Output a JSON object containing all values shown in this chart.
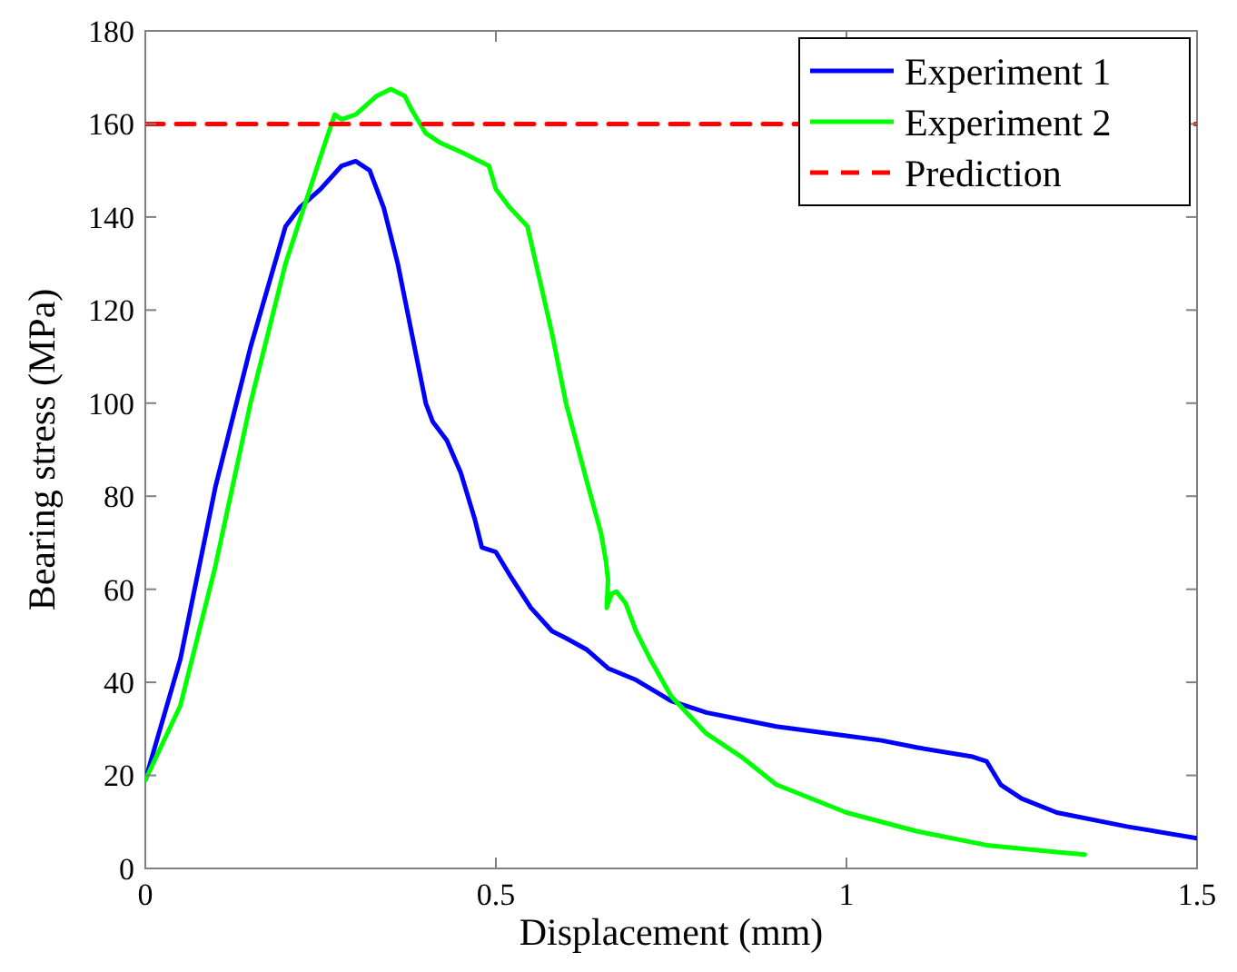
{
  "chart_data": {
    "type": "line",
    "xlabel": "Displacement (mm)",
    "ylabel": "Bearing stress (MPa)",
    "xlim": [
      0,
      1.5
    ],
    "ylim": [
      0,
      180
    ],
    "xticks": [
      0,
      0.5,
      1,
      1.5
    ],
    "yticks": [
      0,
      20,
      40,
      60,
      80,
      100,
      120,
      140,
      160,
      180
    ],
    "grid": false,
    "legend": "top right",
    "line_style": "solid",
    "series": [
      {
        "name": "Experiment 1",
        "color": "#0000ff",
        "x": [
          0,
          0.05,
          0.1,
          0.15,
          0.2,
          0.22,
          0.25,
          0.28,
          0.3,
          0.32,
          0.34,
          0.36,
          0.38,
          0.4,
          0.41,
          0.43,
          0.45,
          0.47,
          0.48,
          0.5,
          0.52,
          0.55,
          0.58,
          0.6,
          0.63,
          0.66,
          0.7,
          0.75,
          0.8,
          0.9,
          1.0,
          1.05,
          1.1,
          1.18,
          1.2,
          1.22,
          1.25,
          1.3,
          1.4,
          1.5
        ],
        "values": [
          19,
          45,
          82,
          112,
          138,
          142,
          146,
          151,
          152,
          150,
          142,
          130,
          115,
          100,
          96,
          92,
          85,
          75,
          69,
          68,
          63,
          56,
          51,
          49.5,
          47,
          43,
          40.5,
          36,
          33.5,
          30.5,
          28.5,
          27.5,
          26,
          24,
          23,
          18,
          15,
          12,
          9,
          6.5
        ]
      },
      {
        "name": "Experiment 2",
        "color": "#00ff00",
        "x": [
          0,
          0.05,
          0.1,
          0.15,
          0.2,
          0.25,
          0.27,
          0.28,
          0.3,
          0.33,
          0.35,
          0.37,
          0.38,
          0.4,
          0.42,
          0.45,
          0.49,
          0.5,
          0.52,
          0.545,
          0.58,
          0.6,
          0.63,
          0.65,
          0.657,
          0.66,
          0.658,
          0.665,
          0.672,
          0.685,
          0.7,
          0.72,
          0.75,
          0.8,
          0.85,
          0.9,
          1.0,
          1.1,
          1.2,
          1.3,
          1.34
        ],
        "values": [
          19,
          35,
          65,
          100,
          130,
          153,
          162,
          161,
          162,
          166,
          167.5,
          166,
          163,
          158,
          156,
          154,
          151,
          146,
          142,
          138,
          115,
          100,
          83,
          72,
          66,
          62,
          56,
          59,
          59.5,
          57,
          51,
          45,
          37,
          29,
          24,
          18,
          12,
          8,
          5,
          3.5,
          3
        ]
      },
      {
        "name": "Prediction",
        "color": "#ff0000",
        "line_style": "dashed",
        "x": [
          0,
          1.5
        ],
        "values": [
          160,
          160
        ]
      }
    ]
  }
}
